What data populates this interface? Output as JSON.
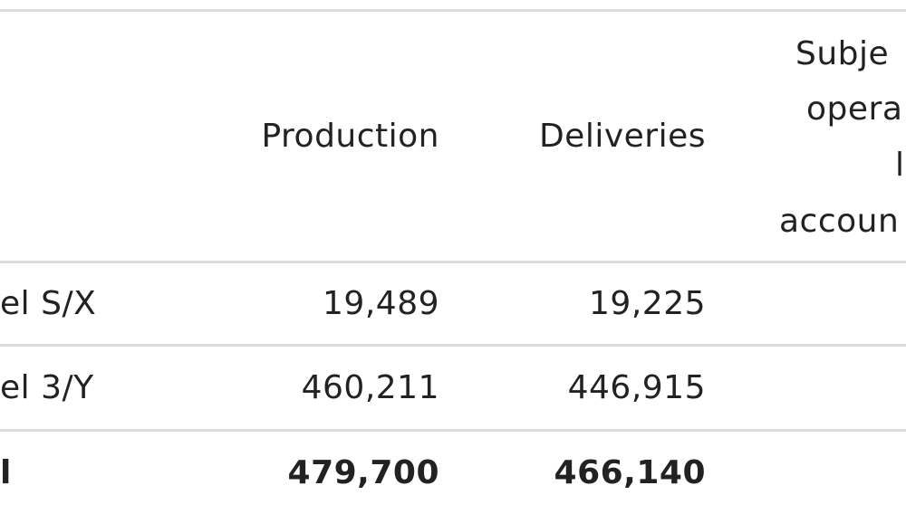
{
  "table": {
    "header": {
      "columns": [
        "Production",
        "Deliveries"
      ],
      "partial_column_lines": [
        "Subje",
        "opera",
        "l",
        "accoun"
      ]
    },
    "rows": [
      [
        "el S/X",
        "19,489",
        "19,225"
      ],
      [
        "el 3/Y",
        "460,211",
        "446,915"
      ],
      [
        "l",
        "479,700",
        "466,140"
      ]
    ]
  }
}
